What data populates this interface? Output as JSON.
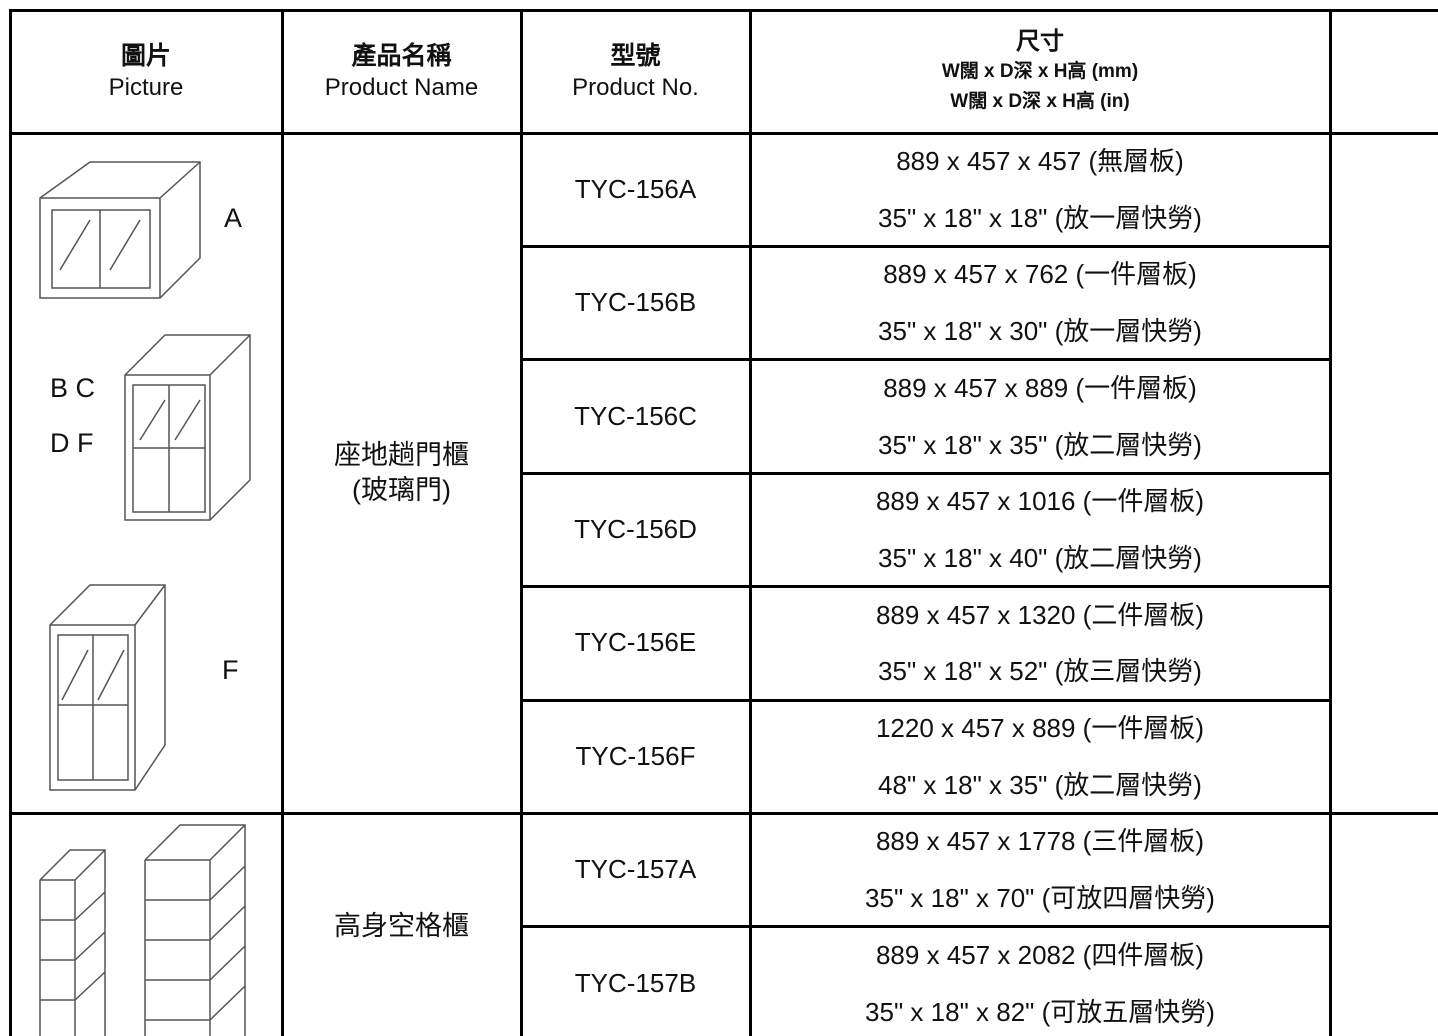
{
  "header": {
    "columns": [
      {
        "zh": "圖片",
        "en": "Picture"
      },
      {
        "zh": "產品名稱",
        "en": "Product Name"
      },
      {
        "zh": "型號",
        "en": "Product No."
      },
      {
        "zh": "尺寸",
        "mm": "W闊 x D深 x H高 (mm)",
        "in": "W闊 x D深 x H高 (in)"
      }
    ]
  },
  "groups": [
    {
      "picture_labels": [
        "A",
        "B C",
        "D F",
        "F"
      ],
      "name": [
        "座地趟門櫃",
        "(玻璃門)"
      ],
      "products": [
        {
          "no": "TYC-156A",
          "mm": "889 x 457 x 457 (無層板)",
          "in": "35\" x 18\" x 18\" (放一層快勞)"
        },
        {
          "no": "TYC-156B",
          "mm": "889 x 457 x 762 (一件層板)",
          "in": "35\" x 18\" x 30\" (放一層快勞)"
        },
        {
          "no": "TYC-156C",
          "mm": "889 x 457 x 889 (一件層板)",
          "in": "35\" x 18\" x 35\" (放二層快勞)"
        },
        {
          "no": "TYC-156D",
          "mm": "889 x 457 x 1016 (一件層板)",
          "in": "35\" x 18\" x 40\" (放二層快勞)"
        },
        {
          "no": "TYC-156E",
          "mm": "889 x 457 x 1320 (二件層板)",
          "in": "35\" x 18\" x 52\" (放三層快勞)"
        },
        {
          "no": "TYC-156F",
          "mm": "1220 x 457 x 889 (一件層板)",
          "in": "48\" x 18\" x 35\" (放二層快勞)"
        }
      ]
    },
    {
      "picture_labels": [],
      "name": [
        "高身空格櫃"
      ],
      "products": [
        {
          "no": "TYC-157A",
          "mm": "889 x 457 x 1778 (三件層板)",
          "in": "35\" x 18\" x 70\" (可放四層快勞)"
        },
        {
          "no": "TYC-157B",
          "mm": "889 x 457 x 2082 (四件層板)",
          "in": "35\" x 18\" x 82\" (可放五層快勞)"
        }
      ]
    }
  ]
}
